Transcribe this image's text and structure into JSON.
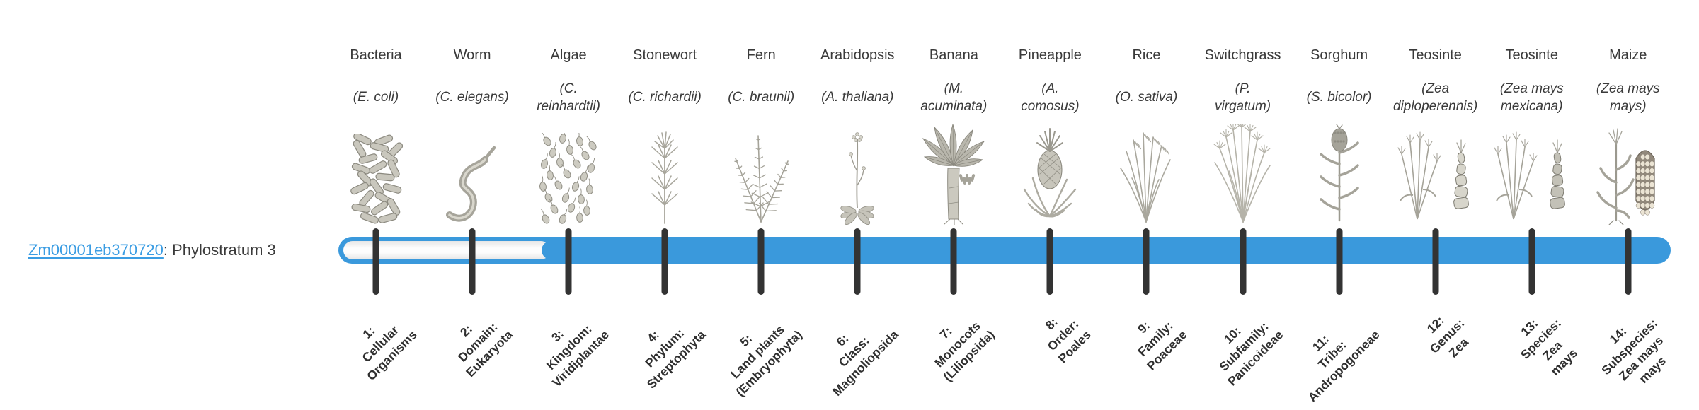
{
  "page": {
    "background": "#ffffff"
  },
  "gene_label": {
    "gene_id": "Zm00001eb370720",
    "description": ": Phylostratum 3",
    "phylostratum": 3
  },
  "timeline": {
    "bar_color": "#3a99dc",
    "tick_color": "#333333",
    "unfilled_color": "#fdfdfd",
    "link_color": "#3b9de3",
    "filled_from_stratum": 3,
    "stratum_count": 14
  },
  "strata": [
    {
      "index": 1,
      "organism": "Bacteria",
      "scientific_name": "(E. coli)",
      "stage_label": "1:\nCellular\nOrganisms",
      "icon": "bacteria-illustration"
    },
    {
      "index": 2,
      "organism": "Worm",
      "scientific_name": "(C. elegans)",
      "stage_label": "2:\nDomain:\nEukaryota",
      "icon": "worm-illustration"
    },
    {
      "index": 3,
      "organism": "Algae",
      "scientific_name": "(C.\nreinhardtii)",
      "stage_label": "3:\nKingdom:\nViridiplantae",
      "icon": "algae-illustration"
    },
    {
      "index": 4,
      "organism": "Stonewort",
      "scientific_name": "(C. richardii)",
      "stage_label": "4:\nPhylum:\nStreptophyta",
      "icon": "stonewort-illustration"
    },
    {
      "index": 5,
      "organism": "Fern",
      "scientific_name": "(C. braunii)",
      "stage_label": "5:\nLand plants\n(Embryophyta)",
      "icon": "fern-illustration"
    },
    {
      "index": 6,
      "organism": "Arabidopsis",
      "scientific_name": "(A. thaliana)",
      "stage_label": "6:\nClass:\nMagnoliopsida",
      "icon": "arabidopsis-illustration"
    },
    {
      "index": 7,
      "organism": "Banana",
      "scientific_name": "(M.\nacuminata)",
      "stage_label": "7:\nMonocots\n(Liliopsida)",
      "icon": "banana-illustration"
    },
    {
      "index": 8,
      "organism": "Pineapple",
      "scientific_name": "(A.\ncomosus)",
      "stage_label": "8:\nOrder:\nPoales",
      "icon": "pineapple-illustration"
    },
    {
      "index": 9,
      "organism": "Rice",
      "scientific_name": "(O. sativa)",
      "stage_label": "9:\nFamily:\nPoaceae",
      "icon": "rice-illustration"
    },
    {
      "index": 10,
      "organism": "Switchgrass",
      "scientific_name": "(P.\nvirgatum)",
      "stage_label": "10:\nSubfamily:\nPanicoideae",
      "icon": "switchgrass-illustration"
    },
    {
      "index": 11,
      "organism": "Sorghum",
      "scientific_name": "(S. bicolor)",
      "stage_label": "11:\nTribe:\nAndropogoneae",
      "icon": "sorghum-illustration"
    },
    {
      "index": 12,
      "organism": "Teosinte",
      "scientific_name": "(Zea\ndiploperennis)",
      "stage_label": "12:\nGenus:\nZea",
      "icon": "teosinte-diploperennis-illustration"
    },
    {
      "index": 13,
      "organism": "Teosinte",
      "scientific_name": "(Zea mays\nmexicana)",
      "stage_label": "13:\nSpecies:\nZea\nmays",
      "icon": "teosinte-mexicana-illustration"
    },
    {
      "index": 14,
      "organism": "Maize",
      "scientific_name": "(Zea mays\nmays)",
      "stage_label": "14:\nSubspecies:\nZea mays\nmays",
      "icon": "maize-illustration"
    }
  ]
}
